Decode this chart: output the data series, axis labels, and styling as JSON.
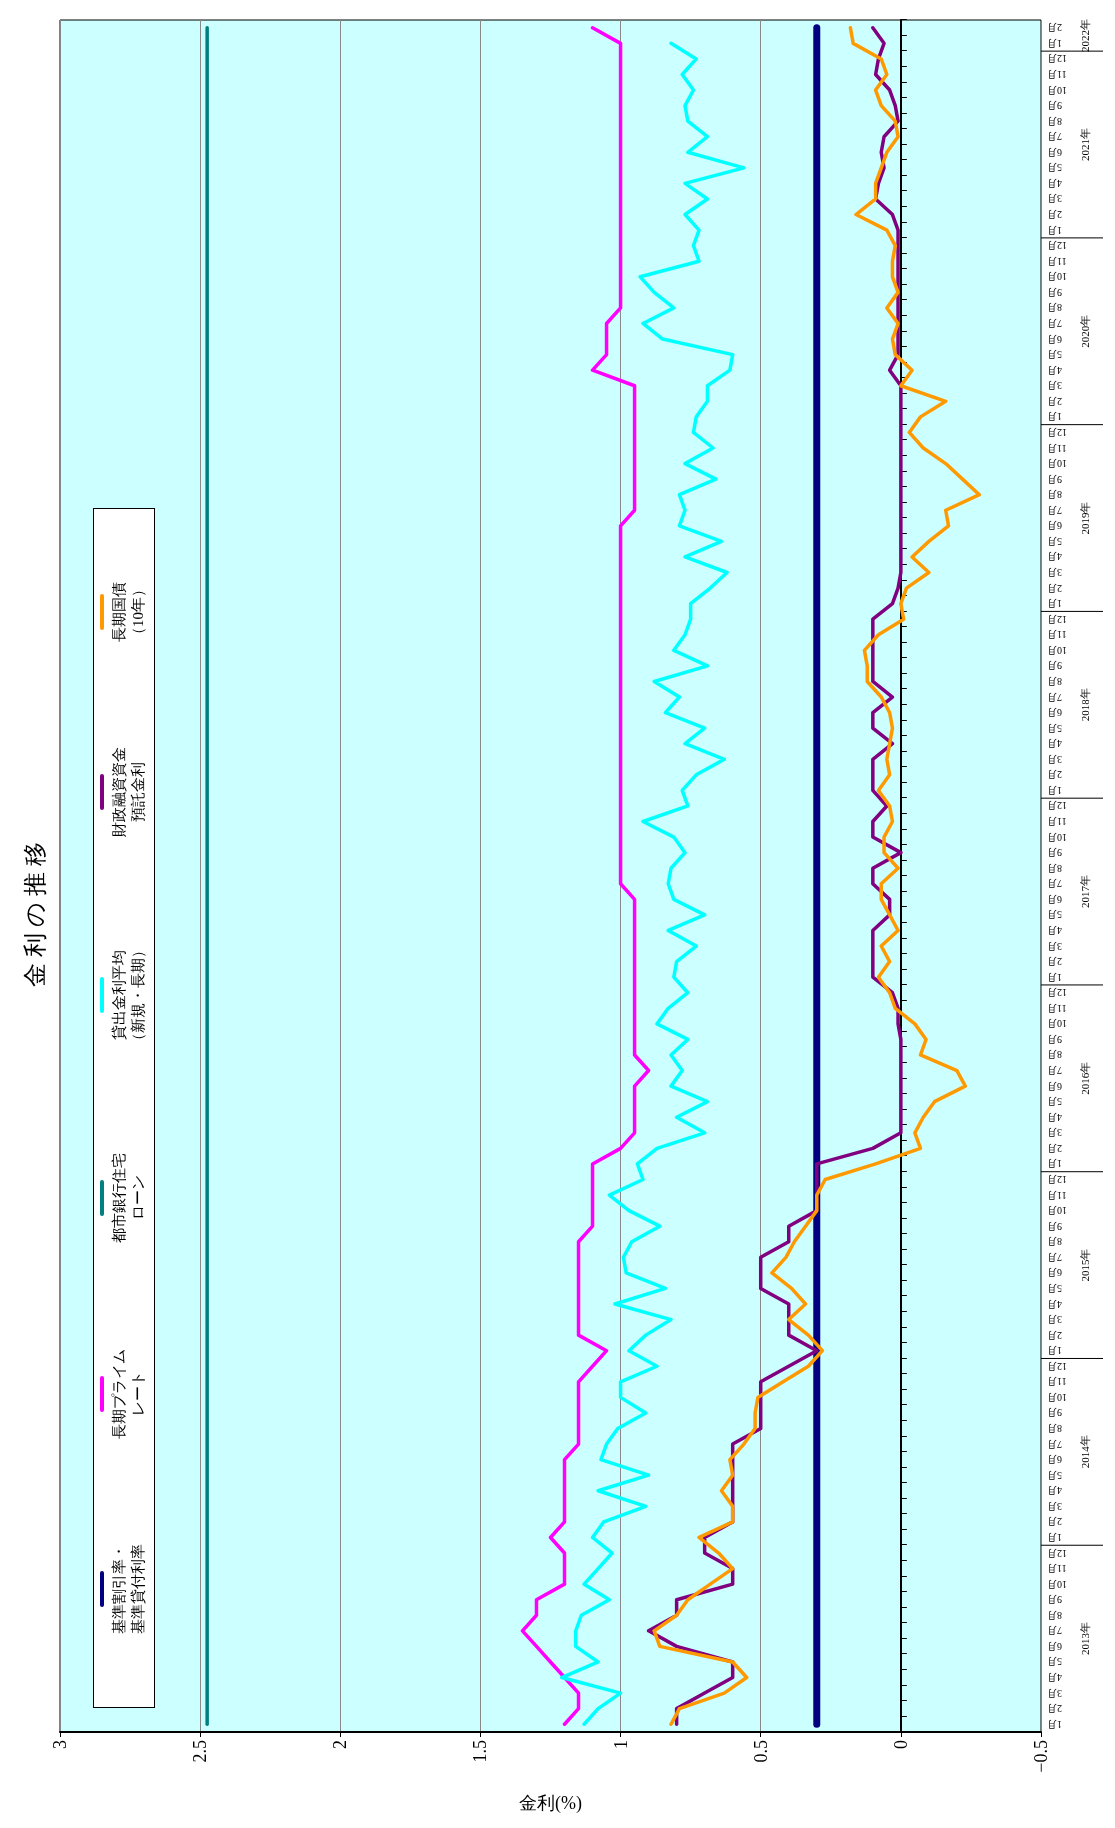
{
  "chart_data": {
    "type": "line",
    "orientation": "horizontal",
    "title": "金 利 の 推 移",
    "xlabel": "金利(%)",
    "categories": [
      "2月",
      "1月",
      "12月",
      "11月",
      "10月",
      "9月",
      "8月",
      "7月",
      "6月",
      "5月",
      "4月",
      "3月",
      "2月",
      "1月",
      "12月",
      "11月",
      "10月",
      "9月",
      "8月",
      "7月",
      "6月",
      "5月",
      "4月",
      "3月",
      "2月",
      "1月",
      "12月",
      "11月",
      "10月",
      "9月",
      "8月",
      "7月",
      "6月",
      "5月",
      "4月",
      "3月",
      "2月",
      "1月",
      "12月",
      "11月",
      "10月",
      "9月",
      "8月",
      "7月",
      "6月",
      "5月",
      "4月",
      "3月",
      "2月",
      "1月",
      "12月",
      "11月",
      "10月",
      "9月",
      "8月",
      "7月",
      "6月",
      "5月",
      "4月",
      "3月",
      "2月",
      "1月",
      "12月",
      "11月",
      "10月",
      "9月",
      "8月",
      "7月",
      "6月",
      "5月",
      "4月",
      "3月",
      "2月",
      "1月",
      "12月",
      "11月",
      "10月",
      "9月",
      "8月",
      "7月",
      "6月",
      "5月",
      "4月",
      "3月",
      "2月",
      "1月",
      "12月",
      "11月",
      "10月",
      "9月",
      "8月",
      "7月",
      "6月",
      "5月",
      "4月",
      "3月",
      "2月",
      "1月",
      "12月",
      "11月",
      "10月",
      "9月",
      "8月",
      "7月",
      "6月",
      "5月",
      "4月",
      "3月",
      "2月",
      "1月"
    ],
    "series": [
      {
        "name": "基準割引率・基準貸付利率",
        "color": "#000080",
        "values": [
          0.3,
          0.3,
          0.3,
          0.3,
          0.3,
          0.3,
          0.3,
          0.3,
          0.3,
          0.3,
          0.3,
          0.3,
          0.3,
          0.3,
          0.3,
          0.3,
          0.3,
          0.3,
          0.3,
          0.3,
          0.3,
          0.3,
          0.3,
          0.3,
          0.3,
          0.3,
          0.3,
          0.3,
          0.3,
          0.3,
          0.3,
          0.3,
          0.3,
          0.3,
          0.3,
          0.3,
          0.3,
          0.3,
          0.3,
          0.3,
          0.3,
          0.3,
          0.3,
          0.3,
          0.3,
          0.3,
          0.3,
          0.3,
          0.3,
          0.3,
          0.3,
          0.3,
          0.3,
          0.3,
          0.3,
          0.3,
          0.3,
          0.3,
          0.3,
          0.3,
          0.3,
          0.3,
          0.3,
          0.3,
          0.3,
          0.3,
          0.3,
          0.3,
          0.3,
          0.3,
          0.3,
          0.3,
          0.3,
          0.3,
          0.3,
          0.3,
          0.3,
          0.3,
          0.3,
          0.3,
          0.3,
          0.3,
          0.3,
          0.3,
          0.3,
          0.3,
          0.3,
          0.3,
          0.3,
          0.3,
          0.3,
          0.3,
          0.3,
          0.3,
          0.3,
          0.3,
          0.3,
          0.3,
          0.3,
          0.3,
          0.3,
          0.3,
          0.3,
          0.3,
          0.3,
          0.3,
          0.3,
          0.3,
          0.3,
          0.3
        ]
      },
      {
        "name": "長期プライムレート",
        "color": "#ff00ff",
        "values": [
          1.1,
          1.0,
          1.0,
          1.0,
          1.0,
          1.0,
          1.0,
          1.0,
          1.0,
          1.0,
          1.0,
          1.0,
          1.0,
          1.0,
          1.0,
          1.0,
          1.0,
          1.0,
          1.0,
          1.05,
          1.05,
          1.05,
          1.1,
          0.95,
          0.95,
          0.95,
          0.95,
          0.95,
          0.95,
          0.95,
          0.95,
          0.95,
          1.0,
          1.0,
          1.0,
          1.0,
          1.0,
          1.0,
          1.0,
          1.0,
          1.0,
          1.0,
          1.0,
          1.0,
          1.0,
          1.0,
          1.0,
          1.0,
          1.0,
          1.0,
          1.0,
          1.0,
          1.0,
          1.0,
          1.0,
          1.0,
          0.95,
          0.95,
          0.95,
          0.95,
          0.95,
          0.95,
          0.95,
          0.95,
          0.95,
          0.95,
          0.95,
          0.9,
          0.95,
          0.95,
          0.95,
          0.95,
          1.0,
          1.1,
          1.1,
          1.1,
          1.1,
          1.1,
          1.15,
          1.15,
          1.15,
          1.15,
          1.15,
          1.15,
          1.15,
          1.05,
          1.1,
          1.15,
          1.15,
          1.15,
          1.15,
          1.15,
          1.2,
          1.2,
          1.2,
          1.2,
          1.2,
          1.25,
          1.2,
          1.2,
          1.2,
          1.3,
          1.3,
          1.35,
          1.3,
          1.25,
          1.2,
          1.15,
          1.15,
          1.2
        ]
      },
      {
        "name": "都市銀行住宅ローン",
        "color": "#008080",
        "values": [
          2.475,
          2.475,
          2.475,
          2.475,
          2.475,
          2.475,
          2.475,
          2.475,
          2.475,
          2.475,
          2.475,
          2.475,
          2.475,
          2.475,
          2.475,
          2.475,
          2.475,
          2.475,
          2.475,
          2.475,
          2.475,
          2.475,
          2.475,
          2.475,
          2.475,
          2.475,
          2.475,
          2.475,
          2.475,
          2.475,
          2.475,
          2.475,
          2.475,
          2.475,
          2.475,
          2.475,
          2.475,
          2.475,
          2.475,
          2.475,
          2.475,
          2.475,
          2.475,
          2.475,
          2.475,
          2.475,
          2.475,
          2.475,
          2.475,
          2.475,
          2.475,
          2.475,
          2.475,
          2.475,
          2.475,
          2.475,
          2.475,
          2.475,
          2.475,
          2.475,
          2.475,
          2.475,
          2.475,
          2.475,
          2.475,
          2.475,
          2.475,
          2.475,
          2.475,
          2.475,
          2.475,
          2.475,
          2.475,
          2.475,
          2.475,
          2.475,
          2.475,
          2.475,
          2.475,
          2.475,
          2.475,
          2.475,
          2.475,
          2.475,
          2.475,
          2.475,
          2.475,
          2.475,
          2.475,
          2.475,
          2.475,
          2.475,
          2.475,
          2.475,
          2.475,
          2.475,
          2.475,
          2.475,
          2.475,
          2.475,
          2.475,
          2.475,
          2.475,
          2.475,
          2.475,
          2.475,
          2.475,
          2.475,
          2.475,
          2.475
        ]
      },
      {
        "name": "貸出金利平均（新規・長期）",
        "color": "#00ffff",
        "values": [
          null,
          0.82,
          0.73,
          0.78,
          0.74,
          0.77,
          0.76,
          0.69,
          0.76,
          0.56,
          0.77,
          0.69,
          0.77,
          0.72,
          0.74,
          0.72,
          0.93,
          0.88,
          0.81,
          0.92,
          0.85,
          0.6,
          0.61,
          0.69,
          0.69,
          0.73,
          0.74,
          0.67,
          0.77,
          0.66,
          0.79,
          0.77,
          0.79,
          0.64,
          0.77,
          0.62,
          0.68,
          0.75,
          0.75,
          0.77,
          0.81,
          0.69,
          0.88,
          0.79,
          0.84,
          0.7,
          0.77,
          0.63,
          0.73,
          0.78,
          0.76,
          0.92,
          0.81,
          0.77,
          0.82,
          0.83,
          0.81,
          0.7,
          0.83,
          0.73,
          0.8,
          0.81,
          0.76,
          0.83,
          0.87,
          0.76,
          0.82,
          0.78,
          0.82,
          0.69,
          0.8,
          0.7,
          0.87,
          0.94,
          0.92,
          1.04,
          0.97,
          0.86,
          0.96,
          0.99,
          0.98,
          0.84,
          1.02,
          0.82,
          0.91,
          0.97,
          0.87,
          1.0,
          1.0,
          0.91,
          1.01,
          1.05,
          1.07,
          0.9,
          1.08,
          0.91,
          1.06,
          1.1,
          1.03,
          1.08,
          1.13,
          1.04,
          1.14,
          1.16,
          1.16,
          1.08,
          1.21,
          1.0,
          1.08,
          1.13
        ]
      },
      {
        "name": "財政融資資金預託金利",
        "color": "#800080",
        "values": [
          0.1,
          0.06,
          0.08,
          0.09,
          0.04,
          0.02,
          0.01,
          0.06,
          0.07,
          0.06,
          0.08,
          0.09,
          0.03,
          0.01,
          0.01,
          0.01,
          0.01,
          0.01,
          0.01,
          0.01,
          0.01,
          0.01,
          0.04,
          0.0,
          0.0,
          0.0,
          0.0,
          0.0,
          0.0,
          0.0,
          0.0,
          0.0,
          0.0,
          0.0,
          0.0,
          0.0,
          0.01,
          0.03,
          0.1,
          0.1,
          0.1,
          0.1,
          0.1,
          0.03,
          0.1,
          0.1,
          0.03,
          0.1,
          0.1,
          0.1,
          0.05,
          0.1,
          0.1,
          0.0,
          0.1,
          0.1,
          0.04,
          0.04,
          0.1,
          0.1,
          0.1,
          0.1,
          0.03,
          0.01,
          0.01,
          0.0,
          0.0,
          0.0,
          0.0,
          0.0,
          0.0,
          0.0,
          0.1,
          0.3,
          0.3,
          0.3,
          0.3,
          0.4,
          0.4,
          0.5,
          0.5,
          0.5,
          0.4,
          0.4,
          0.4,
          0.3,
          0.4,
          0.5,
          0.5,
          0.5,
          0.5,
          0.6,
          0.6,
          0.6,
          0.6,
          0.6,
          0.6,
          0.7,
          0.7,
          0.6,
          0.6,
          0.8,
          0.8,
          0.9,
          0.8,
          0.6,
          0.6,
          0.7,
          0.8,
          0.8
        ]
      },
      {
        "name": "長期国債（10年）",
        "color": "#ff9900",
        "values": [
          0.18,
          0.17,
          0.07,
          0.05,
          0.09,
          0.07,
          0.02,
          0.01,
          0.05,
          0.07,
          0.09,
          0.09,
          0.16,
          0.05,
          0.02,
          0.03,
          0.03,
          0.01,
          0.05,
          0.01,
          0.03,
          0.02,
          -0.04,
          0.0,
          -0.16,
          -0.07,
          -0.03,
          -0.08,
          -0.16,
          -0.22,
          -0.28,
          -0.16,
          -0.17,
          -0.1,
          -0.04,
          -0.1,
          -0.02,
          0.0,
          -0.01,
          0.08,
          0.13,
          0.12,
          0.12,
          0.07,
          0.04,
          0.03,
          0.04,
          0.05,
          0.04,
          0.08,
          0.04,
          0.03,
          0.06,
          0.06,
          0.01,
          0.07,
          0.07,
          0.04,
          0.01,
          0.07,
          0.04,
          0.08,
          0.04,
          0.02,
          -0.05,
          -0.09,
          -0.07,
          -0.2,
          -0.23,
          -0.12,
          -0.08,
          -0.05,
          -0.07,
          0.09,
          0.27,
          0.3,
          0.3,
          0.34,
          0.38,
          0.41,
          0.46,
          0.39,
          0.34,
          0.4,
          0.33,
          0.28,
          0.33,
          0.42,
          0.51,
          0.52,
          0.52,
          0.56,
          0.61,
          0.6,
          0.64,
          0.6,
          0.6,
          0.72,
          0.65,
          0.6,
          0.68,
          0.76,
          0.8,
          0.88,
          0.86,
          0.6,
          0.55,
          0.63,
          0.79,
          0.82
        ]
      }
    ],
    "xlim": [
      3,
      -0.5
    ],
    "xticks": [
      3,
      2.5,
      2,
      1.5,
      1,
      0.5,
      0,
      {
        "value": -0.5,
        "label": "−0.5"
      }
    ],
    "annotations": [
      "2022年",
      "2021年",
      "2020年",
      "2019年",
      "2018年",
      "2017年",
      "2016年",
      "2015年",
      "2014年",
      "2013年"
    ],
    "grid": "x",
    "legend": "left",
    "marker": "none"
  }
}
